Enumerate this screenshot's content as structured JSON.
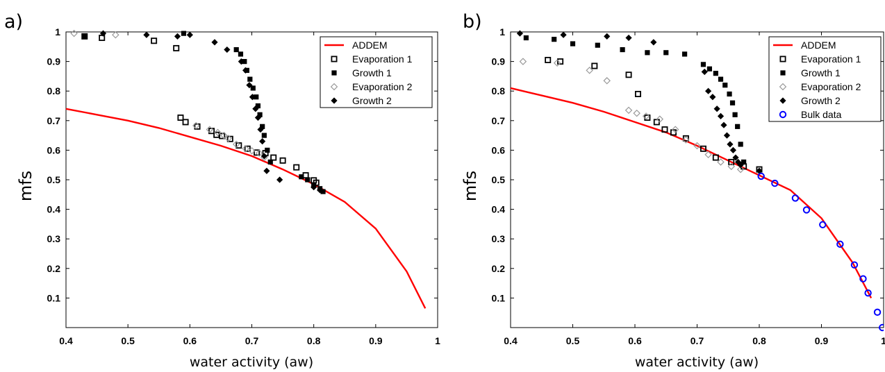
{
  "chart_data": [
    {
      "type": "scatter",
      "panel_label": "a)",
      "xlabel": "water activity (aw)",
      "ylabel": "mfs",
      "xlim": [
        0.4,
        1.0
      ],
      "ylim": [
        0.0,
        1.0
      ],
      "xticks": [
        0.4,
        0.5,
        0.6,
        0.7,
        0.8,
        0.9,
        1.0
      ],
      "xtick_labels": [
        "0.4",
        "0.5",
        "0.6",
        "0.7",
        "0.8",
        "0.9",
        "1"
      ],
      "yticks": [
        0.1,
        0.2,
        0.3,
        0.4,
        0.5,
        0.6,
        0.7,
        0.8,
        0.9,
        1.0
      ],
      "ytick_labels": [
        "0.1",
        "0.2",
        "0.3",
        "0.4",
        "0.5",
        "0.6",
        "0.7",
        "0.8",
        "0.9",
        "1"
      ],
      "grid": false,
      "legend_position": "top-right",
      "series": [
        {
          "name": "ADDEM",
          "marker": "line",
          "color": "#ff0000",
          "x": [
            0.4,
            0.45,
            0.5,
            0.55,
            0.6,
            0.65,
            0.7,
            0.75,
            0.8,
            0.85,
            0.9,
            0.95,
            0.98
          ],
          "y": [
            0.74,
            0.72,
            0.7,
            0.675,
            0.645,
            0.615,
            0.58,
            0.535,
            0.485,
            0.425,
            0.335,
            0.19,
            0.065
          ]
        },
        {
          "name": "Evaporation 1",
          "marker": "open-square",
          "color": "#000000",
          "x": [
            0.43,
            0.458,
            0.542,
            0.578,
            0.585,
            0.593,
            0.612,
            0.635,
            0.643,
            0.652,
            0.665,
            0.679,
            0.693,
            0.708,
            0.722,
            0.735,
            0.75,
            0.772,
            0.787,
            0.8,
            0.804
          ],
          "y": [
            0.985,
            0.98,
            0.97,
            0.945,
            0.71,
            0.695,
            0.68,
            0.665,
            0.652,
            0.648,
            0.638,
            0.616,
            0.605,
            0.592,
            0.59,
            0.575,
            0.565,
            0.542,
            0.515,
            0.498,
            0.49
          ]
        },
        {
          "name": "Growth 1",
          "marker": "filled-square",
          "color": "#000000",
          "x": [
            0.43,
            0.59,
            0.675,
            0.682,
            0.688,
            0.692,
            0.697,
            0.702,
            0.707,
            0.71,
            0.713,
            0.717,
            0.72,
            0.725,
            0.73,
            0.78,
            0.79,
            0.8,
            0.81,
            0.815
          ],
          "y": [
            0.985,
            0.995,
            0.94,
            0.925,
            0.9,
            0.87,
            0.84,
            0.81,
            0.78,
            0.75,
            0.72,
            0.68,
            0.65,
            0.6,
            0.56,
            0.51,
            0.5,
            0.48,
            0.47,
            0.46
          ]
        },
        {
          "name": "Evaporation 2",
          "marker": "open-diamond",
          "color": "#999999",
          "x": [
            0.413,
            0.48,
            0.61,
            0.632,
            0.645,
            0.655,
            0.662,
            0.675,
            0.69,
            0.7,
            0.712,
            0.72
          ],
          "y": [
            0.995,
            0.99,
            0.683,
            0.67,
            0.66,
            0.65,
            0.64,
            0.62,
            0.605,
            0.598,
            0.59,
            0.575
          ]
        },
        {
          "name": "Growth 2",
          "marker": "filled-diamond",
          "color": "#000000",
          "x": [
            0.46,
            0.53,
            0.58,
            0.6,
            0.64,
            0.66,
            0.683,
            0.69,
            0.696,
            0.701,
            0.706,
            0.71,
            0.714,
            0.717,
            0.72,
            0.724,
            0.745,
            0.8,
            0.81
          ],
          "y": [
            0.995,
            0.99,
            0.985,
            0.99,
            0.965,
            0.94,
            0.9,
            0.87,
            0.82,
            0.78,
            0.74,
            0.71,
            0.67,
            0.63,
            0.58,
            0.53,
            0.5,
            0.475,
            0.465
          ]
        }
      ]
    },
    {
      "type": "scatter",
      "panel_label": "b)",
      "xlabel": "water activity (aw)",
      "ylabel": "mfs",
      "xlim": [
        0.4,
        1.0
      ],
      "ylim": [
        0.0,
        1.0
      ],
      "xticks": [
        0.4,
        0.5,
        0.6,
        0.7,
        0.8,
        0.9,
        1.0
      ],
      "xtick_labels": [
        "0.4",
        "0.5",
        "0.6",
        "0.7",
        "0.8",
        "0.9",
        "1"
      ],
      "yticks": [
        0.1,
        0.2,
        0.3,
        0.4,
        0.5,
        0.6,
        0.7,
        0.8,
        0.9,
        1.0
      ],
      "ytick_labels": [
        "0.1",
        "0.2",
        "0.3",
        "0.4",
        "0.5",
        "0.6",
        "0.7",
        "0.8",
        "0.9",
        "1"
      ],
      "grid": false,
      "legend_position": "top-right",
      "series": [
        {
          "name": "ADDEM",
          "marker": "line",
          "color": "#ff0000",
          "x": [
            0.4,
            0.45,
            0.5,
            0.55,
            0.6,
            0.65,
            0.7,
            0.75,
            0.8,
            0.85,
            0.9,
            0.95,
            0.98
          ],
          "y": [
            0.81,
            0.785,
            0.76,
            0.73,
            0.695,
            0.66,
            0.615,
            0.565,
            0.515,
            0.465,
            0.37,
            0.22,
            0.1
          ]
        },
        {
          "name": "Evaporation 1",
          "marker": "open-square",
          "color": "#000000",
          "x": [
            0.46,
            0.48,
            0.535,
            0.59,
            0.605,
            0.62,
            0.635,
            0.648,
            0.662,
            0.682,
            0.71,
            0.73,
            0.755,
            0.775,
            0.8
          ],
          "y": [
            0.905,
            0.9,
            0.885,
            0.855,
            0.79,
            0.71,
            0.695,
            0.67,
            0.66,
            0.64,
            0.605,
            0.575,
            0.56,
            0.545,
            0.535
          ]
        },
        {
          "name": "Growth 1",
          "marker": "filled-square",
          "color": "#000000",
          "x": [
            0.425,
            0.47,
            0.5,
            0.54,
            0.58,
            0.62,
            0.65,
            0.68,
            0.71,
            0.72,
            0.73,
            0.738,
            0.745,
            0.752,
            0.757,
            0.761,
            0.765,
            0.77,
            0.775
          ],
          "y": [
            0.98,
            0.975,
            0.96,
            0.955,
            0.94,
            0.93,
            0.93,
            0.925,
            0.89,
            0.875,
            0.86,
            0.84,
            0.82,
            0.79,
            0.76,
            0.72,
            0.68,
            0.62,
            0.56
          ]
        },
        {
          "name": "Evaporation 2",
          "marker": "open-diamond",
          "color": "#999999",
          "x": [
            0.42,
            0.475,
            0.527,
            0.555,
            0.59,
            0.603,
            0.618,
            0.64,
            0.665,
            0.682,
            0.7,
            0.718,
            0.738,
            0.755,
            0.77
          ],
          "y": [
            0.9,
            0.895,
            0.87,
            0.835,
            0.735,
            0.725,
            0.715,
            0.705,
            0.67,
            0.635,
            0.615,
            0.585,
            0.56,
            0.545,
            0.535
          ]
        },
        {
          "name": "Growth 2",
          "marker": "filled-diamond",
          "color": "#000000",
          "x": [
            0.415,
            0.485,
            0.555,
            0.59,
            0.63,
            0.712,
            0.718,
            0.725,
            0.732,
            0.738,
            0.743,
            0.748,
            0.753,
            0.758,
            0.762,
            0.766,
            0.77,
            0.8
          ],
          "y": [
            0.995,
            0.99,
            0.985,
            0.98,
            0.965,
            0.865,
            0.8,
            0.78,
            0.74,
            0.715,
            0.685,
            0.65,
            0.62,
            0.6,
            0.575,
            0.56,
            0.55,
            0.53
          ]
        },
        {
          "name": "Bulk data",
          "marker": "open-circle",
          "color": "#0000ff",
          "x": [
            0.803,
            0.825,
            0.858,
            0.876,
            0.902,
            0.93,
            0.953,
            0.967,
            0.975,
            0.99,
            0.998
          ],
          "y": [
            0.512,
            0.488,
            0.438,
            0.398,
            0.348,
            0.282,
            0.212,
            0.165,
            0.117,
            0.052,
            0.0
          ]
        }
      ]
    }
  ]
}
